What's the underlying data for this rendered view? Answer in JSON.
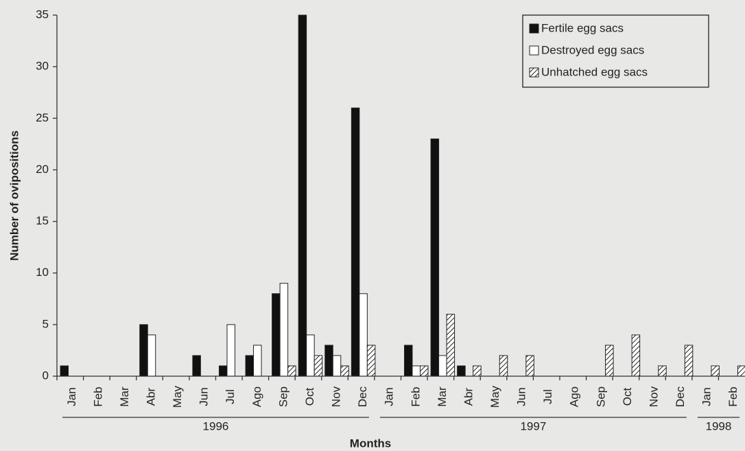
{
  "chart_data": {
    "type": "bar",
    "y_label": "Number of ovipositions",
    "x_label": "Months",
    "groups": [
      {
        "label": "1996",
        "categories": [
          "Jan",
          "Feb",
          "Mar",
          "Abr",
          "May",
          "Jun",
          "Jul",
          "Ago",
          "Sep",
          "Oct",
          "Nov",
          "Dec"
        ]
      },
      {
        "label": "1997",
        "categories": [
          "Jan",
          "Feb",
          "Mar",
          "Abr",
          "May",
          "Jun",
          "Jul",
          "Ago",
          "Sep",
          "Oct",
          "Nov",
          "Dec"
        ]
      },
      {
        "label": "1998",
        "categories": [
          "Jan",
          "Feb"
        ]
      }
    ],
    "series": [
      {
        "name": "Fertile egg sacs",
        "color": "#111111",
        "values": [
          1,
          0,
          0,
          5,
          0,
          2,
          1,
          2,
          8,
          35,
          3,
          26,
          0,
          3,
          23,
          1,
          0,
          0,
          0,
          0,
          0,
          0,
          0,
          0,
          0,
          0
        ]
      },
      {
        "name": "Destroyed egg sacs",
        "color": "#ffffff",
        "values": [
          0,
          0,
          0,
          4,
          0,
          0,
          5,
          3,
          9,
          4,
          2,
          8,
          0,
          1,
          2,
          0,
          0,
          0,
          0,
          0,
          0,
          0,
          0,
          0,
          0,
          0
        ]
      },
      {
        "name": "Unhatched egg sacs",
        "color": "hatch",
        "values": [
          0,
          0,
          0,
          0,
          0,
          0,
          0,
          0,
          1,
          2,
          1,
          3,
          0,
          1,
          6,
          1,
          2,
          2,
          0,
          0,
          3,
          4,
          1,
          3,
          1,
          1
        ]
      }
    ],
    "ylim": [
      0,
      35
    ],
    "yticks": [
      0,
      5,
      10,
      15,
      20,
      25,
      30,
      35
    ],
    "legend": "top-right"
  }
}
